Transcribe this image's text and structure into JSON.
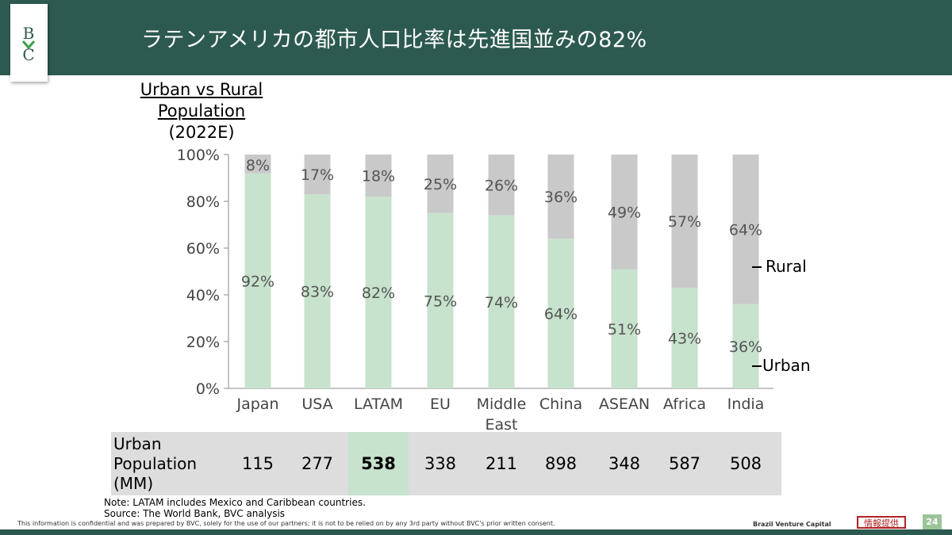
{
  "header": {
    "title": "ラテンアメリカの都市人口比率は先進国並みの82%"
  },
  "logo": {
    "text": "BVC"
  },
  "chart_title": {
    "line1": "Urban vs Rural",
    "line2": "Population",
    "line3": "(2022E)"
  },
  "chart_data": {
    "type": "bar",
    "stacked": true,
    "percent": true,
    "categories": [
      "Japan",
      "USA",
      "LATAM",
      "EU",
      "Middle East",
      "China",
      "ASEAN",
      "Africa",
      "India"
    ],
    "series": [
      {
        "name": "Urban",
        "values": [
          92,
          83,
          82,
          75,
          74,
          64,
          51,
          43,
          36
        ],
        "color": "#c7e2cd"
      },
      {
        "name": "Rural",
        "values": [
          8,
          17,
          18,
          25,
          26,
          36,
          49,
          57,
          64
        ],
        "color": "#c9c9c9"
      }
    ],
    "labels": {
      "Urban": [
        "92%",
        "83%",
        "82%",
        "75%",
        "74%",
        "64%",
        "51%",
        "43%",
        "36%"
      ],
      "Rural": [
        "8%",
        "17%",
        "18%",
        "25%",
        "26%",
        "36%",
        "49%",
        "57%",
        "64%"
      ]
    },
    "yticks": [
      "0%",
      "20%",
      "40%",
      "60%",
      "80%",
      "100%"
    ],
    "ylim": [
      0,
      100
    ],
    "legend": {
      "rural": "Rural",
      "urban": "Urban"
    }
  },
  "table": {
    "label_lines": [
      "Urban",
      "Population",
      "(MM)"
    ],
    "values": [
      "115",
      "277",
      "538",
      "338",
      "211",
      "898",
      "348",
      "587",
      "508"
    ],
    "highlight_index": 2
  },
  "notes": {
    "line1": "Note: LATAM includes Mexico and Caribbean countries.",
    "line2": "Source: The World Bank, BVC analysis"
  },
  "footer": {
    "confidential": "This information is confidential and was prepared by BVC, solely for the use of our partners; it is not to be relied on by any 3rd party without BVC's prior written consent.",
    "brand": "Brazil Venture Capital",
    "stamp": "情報提供",
    "page": "24"
  },
  "colors": {
    "header": "#2d5a50",
    "urban": "#c7e2cd",
    "rural": "#c9c9c9"
  }
}
